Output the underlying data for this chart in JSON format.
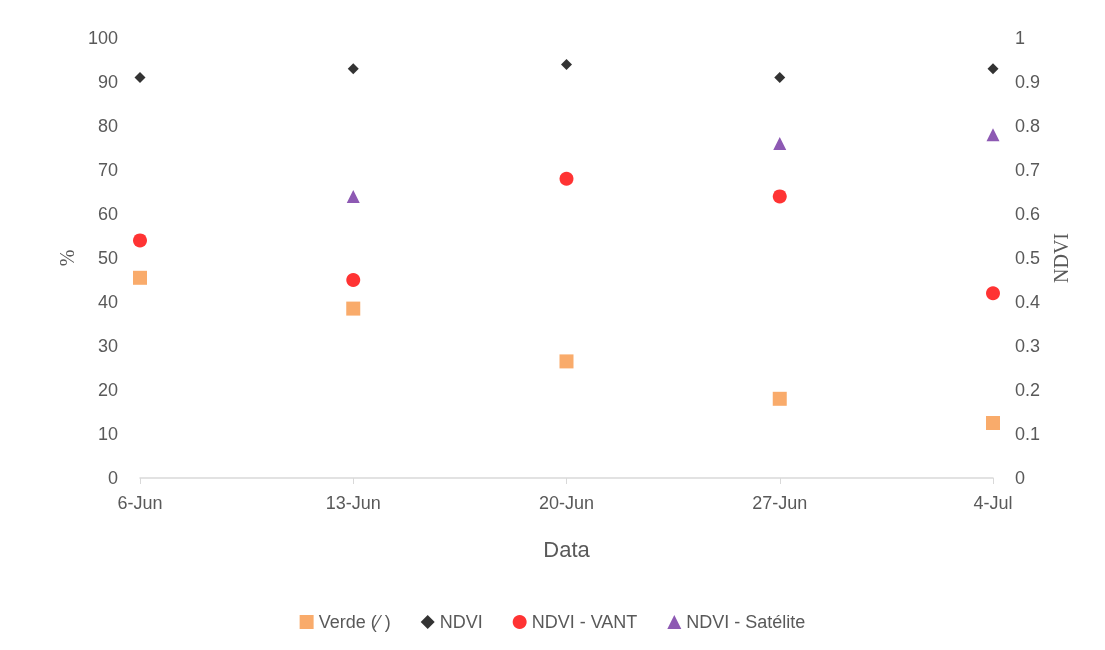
{
  "chart_data": {
    "type": "scatter",
    "xlabel": "Data",
    "ylabel": "%",
    "y2label": "NDVI",
    "categories": [
      "6-Jun",
      "13-Jun",
      "20-Jun",
      "27-Jun",
      "4-Jul"
    ],
    "series": [
      {
        "name": "Verde (⁄ )",
        "color": "#f79646",
        "marker": "square",
        "values": [
          45.5,
          38.5,
          26.5,
          18,
          12.5
        ]
      },
      {
        "name": "NDVI",
        "color": "#000000",
        "marker": "diamond",
        "axis": "y2",
        "values": [
          0.91,
          0.93,
          0.94,
          0.91,
          0.93
        ]
      },
      {
        "name": "NDVI - VANT",
        "color": "#ff0000",
        "marker": "circle",
        "axis": "y2",
        "values": [
          0.54,
          0.45,
          0.68,
          0.64,
          0.42
        ]
      },
      {
        "name": "NDVI - Satélite",
        "color": "#7030a0",
        "marker": "triangle",
        "axis": "y2",
        "values": [
          null,
          0.64,
          null,
          0.76,
          0.78
        ]
      }
    ],
    "ylim": [
      0,
      100
    ],
    "yticks": [
      0,
      10,
      20,
      30,
      40,
      50,
      60,
      70,
      80,
      90,
      100
    ],
    "y2lim": [
      0,
      1
    ],
    "y2ticks": [
      0,
      0.1,
      0.2,
      0.3,
      0.4,
      0.5,
      0.6,
      0.7,
      0.8,
      0.9,
      1
    ],
    "grid": false,
    "legend": "bottom"
  }
}
